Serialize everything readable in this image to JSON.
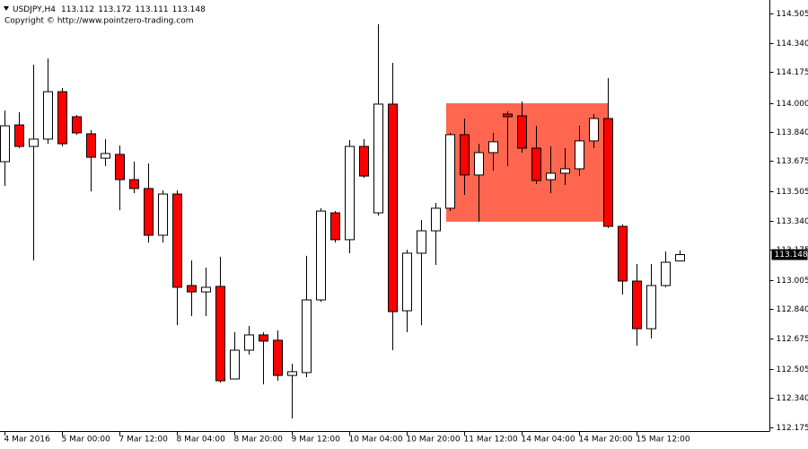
{
  "chart_data": {
    "type": "candlestick",
    "symbol": "USDJPY,H4",
    "copyright": "Copyright © http://www.pointzero-trading.com",
    "categories": [
      "4 Mar 2016",
      null,
      null,
      null,
      "5 Mar 00:00",
      null,
      null,
      null,
      "7 Mar 12:00",
      null,
      null,
      null,
      "8 Mar 04:00",
      null,
      null,
      null,
      "8 Mar 20:00",
      null,
      null,
      null,
      "9 Mar 12:00",
      null,
      null,
      null,
      "10 Mar 04:00",
      null,
      null,
      null,
      "10 Mar 20:00",
      null,
      null,
      null,
      "11 Mar 12:00",
      null,
      null,
      null,
      "14 Mar 04:00",
      null,
      null,
      null,
      "14 Mar 20:00",
      null,
      null,
      null,
      "15 Mar 12:00",
      null,
      null,
      null
    ],
    "open": [
      113.671,
      113.878,
      113.757,
      113.798,
      114.065,
      113.924,
      113.828,
      113.691,
      113.712,
      113.57,
      113.52,
      113.257,
      113.489,
      112.974,
      112.938,
      112.969,
      112.448,
      112.61,
      112.696,
      112.666,
      112.468,
      112.484,
      112.893,
      113.383,
      113.232,
      113.757,
      113.383,
      113.995,
      112.832,
      113.156,
      113.282,
      113.409,
      113.823,
      113.596,
      113.722,
      113.939,
      113.929,
      113.747,
      113.57,
      113.606,
      113.631,
      113.788,
      113.914,
      113.307,
      112.999,
      112.731,
      112.974,
      113.112
    ],
    "high": [
      113.959,
      113.949,
      114.217,
      114.252,
      114.086,
      113.934,
      113.848,
      113.798,
      113.762,
      113.671,
      113.661,
      113.51,
      113.51,
      113.115,
      113.075,
      113.136,
      112.711,
      112.746,
      112.711,
      112.721,
      112.534,
      113.141,
      113.409,
      113.393,
      113.793,
      113.798,
      114.445,
      114.227,
      113.176,
      113.343,
      113.439,
      113.833,
      113.914,
      113.772,
      113.833,
      113.954,
      114.01,
      113.873,
      113.757,
      113.747,
      113.873,
      113.939,
      114.141,
      113.318,
      113.095,
      113.095,
      113.166,
      113.172
    ],
    "low": [
      113.535,
      113.747,
      113.115,
      113.772,
      113.757,
      113.823,
      113.504,
      113.646,
      113.398,
      113.494,
      113.216,
      113.216,
      112.751,
      112.802,
      112.802,
      112.428,
      112.448,
      112.585,
      112.418,
      112.438,
      112.226,
      112.458,
      112.883,
      113.216,
      113.156,
      113.58,
      113.368,
      112.61,
      112.711,
      112.751,
      113.09,
      113.393,
      113.484,
      113.333,
      113.621,
      113.646,
      113.722,
      113.545,
      113.494,
      113.54,
      113.59,
      113.747,
      113.297,
      112.923,
      112.635,
      112.676,
      112.964,
      113.111
    ],
    "close": [
      113.873,
      113.757,
      113.798,
      114.065,
      113.772,
      113.833,
      113.696,
      113.717,
      113.57,
      113.52,
      113.257,
      113.489,
      112.964,
      112.938,
      112.964,
      112.438,
      112.61,
      112.696,
      112.661,
      112.468,
      112.489,
      112.893,
      113.393,
      113.232,
      113.757,
      113.59,
      113.995,
      112.827,
      113.156,
      113.282,
      113.409,
      113.823,
      113.596,
      113.722,
      113.783,
      113.924,
      113.747,
      113.565,
      113.606,
      113.631,
      113.788,
      113.914,
      113.307,
      112.999,
      112.731,
      112.974,
      113.105,
      113.148
    ],
    "up_color": "#ffffff",
    "down_color": "#ff0000",
    "zone": {
      "low": 113.333,
      "high": 114.0,
      "color": "#ff6650"
    },
    "ylim": [
      112.155,
      114.581
    ],
    "yticks": [
      114.505,
      {
        "value": 114.34,
        "label": "114.340"
      },
      114.175,
      {
        "value": 114.0,
        "label": "114.000"
      },
      {
        "value": 113.84,
        "label": "113.840"
      },
      113.675,
      113.505,
      {
        "value": 113.34,
        "label": "113.340"
      },
      113.175,
      113.005,
      {
        "value": 112.84,
        "label": "112.840"
      },
      112.675,
      112.505,
      {
        "value": 112.34,
        "label": "112.340"
      },
      112.175
    ]
  }
}
